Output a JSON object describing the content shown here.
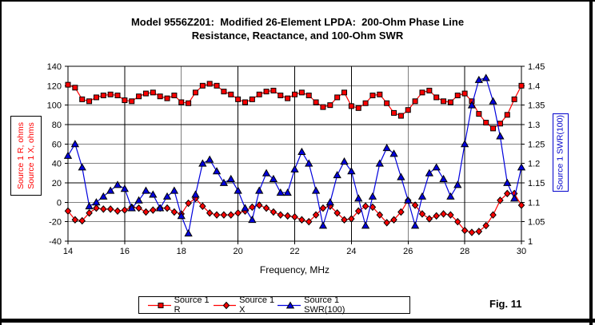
{
  "title": {
    "line1": "Model 9556Z201:  Modified 26-Element LPDA:  200-Ohm Phase Line",
    "line2": "Resistance, Reactance, and 100-Ohm SWR"
  },
  "figure_label": "Fig. 11",
  "colors": {
    "resistance_series": "#ff0000",
    "reactance_series": "#ff0000",
    "swr_series": "#0000dd",
    "left_axis_label": "#ff0000",
    "right_axis_label": "#0000cc",
    "grid": "#000000"
  },
  "chart_data": {
    "type": "line",
    "title": "Model 9556Z201: Modified 26-Element LPDA: 200-Ohm Phase Line Resistance, Reactance, and 100-Ohm SWR",
    "xlabel": "Frequency, MHz",
    "grid": true,
    "legend_position": "bottom",
    "x_axis": {
      "min": 14,
      "max": 30,
      "ticks": [
        "14",
        "16",
        "18",
        "20",
        "22",
        "24",
        "26",
        "28",
        "30"
      ]
    },
    "left_axis": {
      "label_lines": [
        "Source 1 R, ohms",
        "Source 1 X, ohms"
      ],
      "min": -40,
      "max": 140,
      "ticks": [
        "140",
        "120",
        "100",
        "80",
        "60",
        "40",
        "20",
        "0",
        "-20",
        "-40"
      ]
    },
    "right_axis": {
      "label": "Source 1 SWR(100)",
      "min": 1,
      "max": 1.45,
      "ticks": [
        "1.45",
        "1.4",
        "1.35",
        "1.3",
        "1.25",
        "1.2",
        "1.15",
        "1.1",
        "1.05",
        "1"
      ]
    },
    "x": [
      14,
      14.25,
      14.5,
      14.75,
      15,
      15.25,
      15.5,
      15.75,
      16,
      16.25,
      16.5,
      16.75,
      17,
      17.25,
      17.5,
      17.75,
      18,
      18.25,
      18.5,
      18.75,
      19,
      19.25,
      19.5,
      19.75,
      20,
      20.25,
      20.5,
      20.75,
      21,
      21.25,
      21.5,
      21.75,
      22,
      22.25,
      22.5,
      22.75,
      23,
      23.25,
      23.5,
      23.75,
      24,
      24.25,
      24.5,
      24.75,
      25,
      25.25,
      25.5,
      25.75,
      26,
      26.25,
      26.5,
      26.75,
      27,
      27.25,
      27.5,
      27.75,
      28,
      28.25,
      28.5,
      28.75,
      29,
      29.25,
      29.5,
      29.75,
      30
    ],
    "series": [
      {
        "name": "Source 1 R",
        "axis": "left",
        "color": "#ff0000",
        "marker": "square",
        "values": [
          121,
          118,
          106,
          104,
          108,
          110,
          111,
          110,
          105,
          104,
          109,
          112,
          113,
          109,
          107,
          110,
          103,
          102,
          113,
          120,
          122,
          120,
          114,
          111,
          106,
          103,
          106,
          111,
          114,
          115,
          110,
          107,
          111,
          113,
          110,
          103,
          98,
          100,
          108,
          113,
          99,
          97,
          102,
          110,
          111,
          102,
          92,
          89,
          95,
          104,
          113,
          115,
          108,
          104,
          103,
          110,
          112,
          104,
          91,
          82,
          76,
          81,
          90,
          106,
          120
        ]
      },
      {
        "name": "Source 1 X",
        "axis": "left",
        "color": "#ff0000",
        "marker": "diamond",
        "values": [
          -9,
          -18,
          -19,
          -11,
          -6,
          -7,
          -7,
          -9,
          -8,
          -5,
          -6,
          -10,
          -8,
          -6,
          -6,
          -10,
          -12,
          -1,
          4,
          -4,
          -11,
          -13,
          -13,
          -13,
          -11,
          -9,
          -5,
          -3,
          -6,
          -10,
          -13,
          -14,
          -15,
          -18,
          -20,
          -13,
          -6,
          -4,
          -11,
          -18,
          -17,
          -9,
          -4,
          -5,
          -13,
          -21,
          -18,
          -10,
          2,
          -3,
          -12,
          -17,
          -14,
          -12,
          -13,
          -20,
          -29,
          -31,
          -30,
          -24,
          -13,
          2,
          9,
          9,
          -3
        ]
      },
      {
        "name": "Source 1 SWR(100)",
        "axis": "right",
        "color": "#0000dd",
        "marker": "triangle",
        "values": [
          1.22,
          1.25,
          1.19,
          1.09,
          1.1,
          1.115,
          1.13,
          1.145,
          1.135,
          1.085,
          1.105,
          1.13,
          1.12,
          1.085,
          1.115,
          1.13,
          1.065,
          1.02,
          1.12,
          1.2,
          1.21,
          1.18,
          1.15,
          1.16,
          1.13,
          1.085,
          1.055,
          1.13,
          1.175,
          1.16,
          1.125,
          1.125,
          1.185,
          1.23,
          1.2,
          1.13,
          1.04,
          1.1,
          1.17,
          1.205,
          1.18,
          1.11,
          1.04,
          1.115,
          1.2,
          1.24,
          1.225,
          1.165,
          1.105,
          1.04,
          1.115,
          1.175,
          1.19,
          1.16,
          1.115,
          1.145,
          1.25,
          1.35,
          1.415,
          1.42,
          1.36,
          1.27,
          1.15,
          1.11,
          1.19
        ]
      }
    ]
  }
}
